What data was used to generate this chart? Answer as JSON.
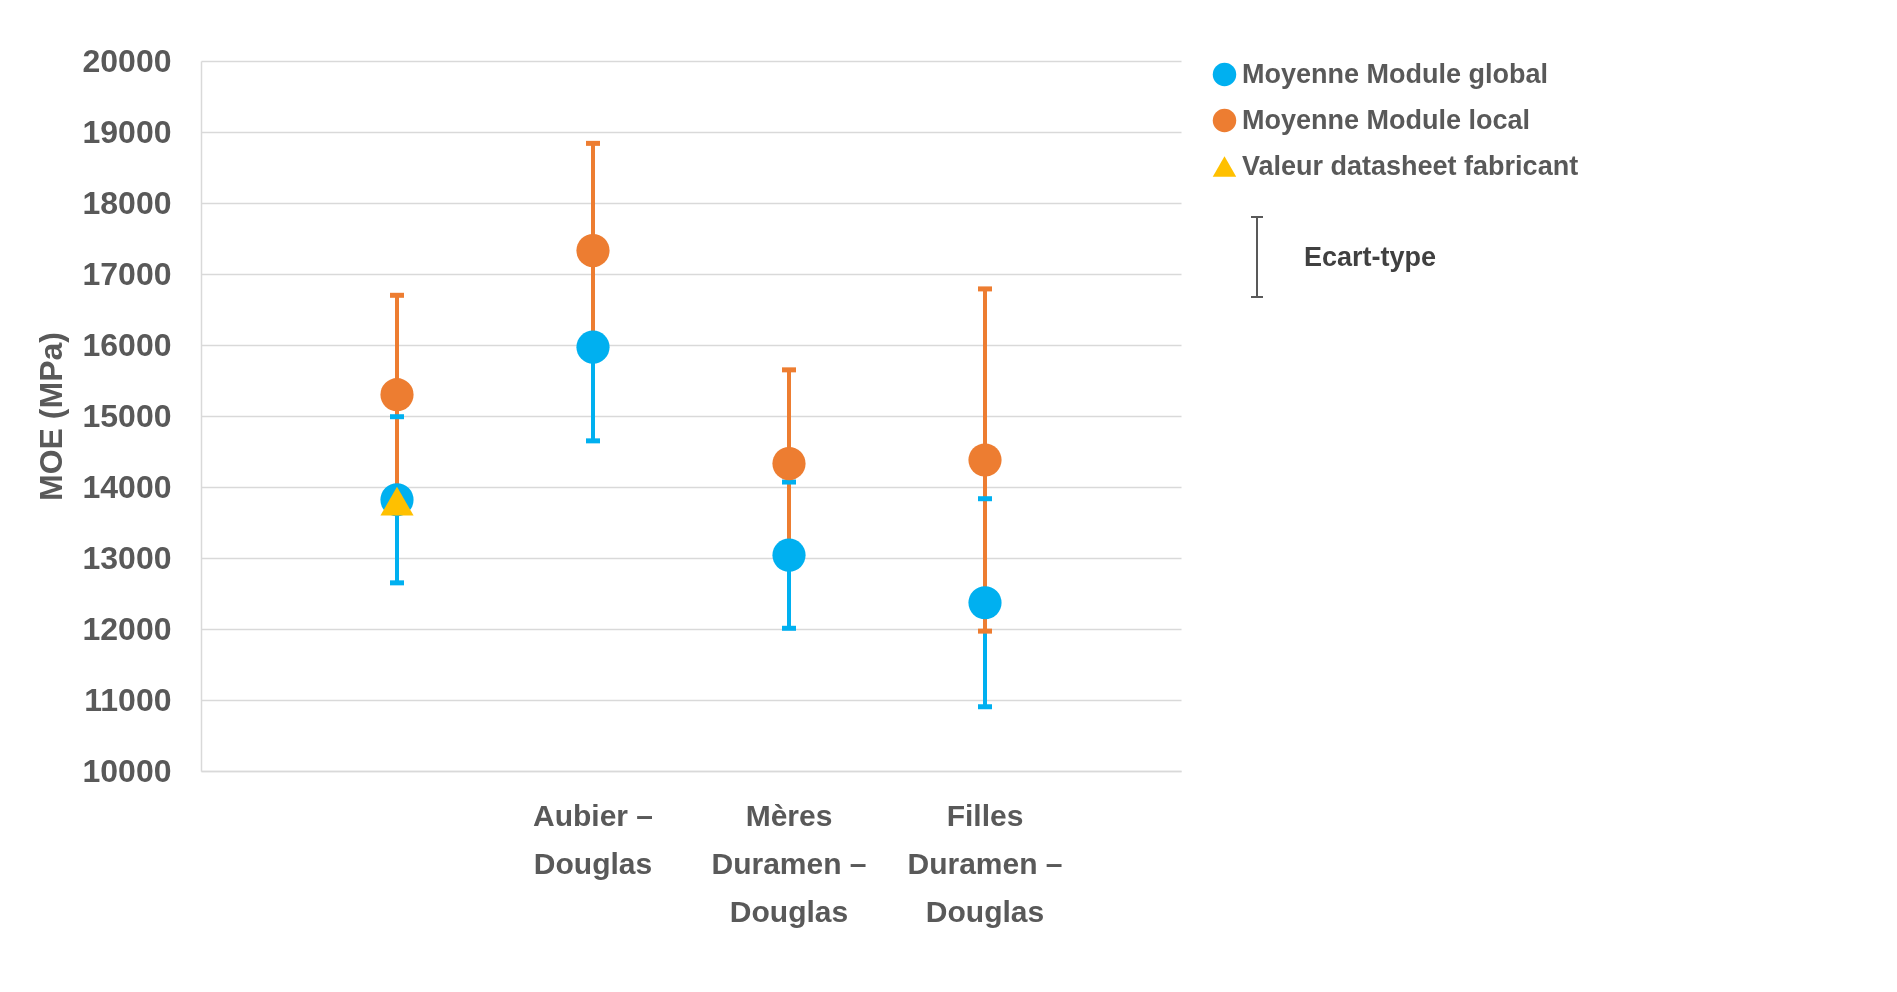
{
  "chart_data": {
    "type": "scatter",
    "ylabel": "MOE (MPa)",
    "categories": [
      null,
      "Aubier – Douglas",
      "Mères Duramen – Douglas",
      "Filles Duramen – Douglas"
    ],
    "series": [
      {
        "name": "Moyenne Module global",
        "color": "#00b0f0",
        "marker": "circle",
        "values": [
          13820,
          15970,
          13040,
          12370
        ],
        "errors": [
          1170,
          1320,
          1030,
          1465
        ]
      },
      {
        "name": "Moyenne Module local",
        "color": "#ed7d31",
        "marker": "circle",
        "values": [
          15300,
          17330,
          14330,
          14380
        ],
        "errors": [
          1400,
          1510,
          1320,
          2410
        ]
      },
      {
        "name": "Valeur datasheet fabricant",
        "color": "#ffc000",
        "marker": "triangle",
        "values": [
          13800,
          null,
          null,
          null
        ]
      }
    ],
    "ylim": [
      10000,
      20000
    ],
    "yticks": [
      10000,
      11000,
      12000,
      13000,
      14000,
      15000,
      16000,
      17000,
      18000,
      19000,
      20000
    ],
    "grid": "y",
    "legend": "right",
    "annotations": [
      "Ecart-type"
    ]
  }
}
